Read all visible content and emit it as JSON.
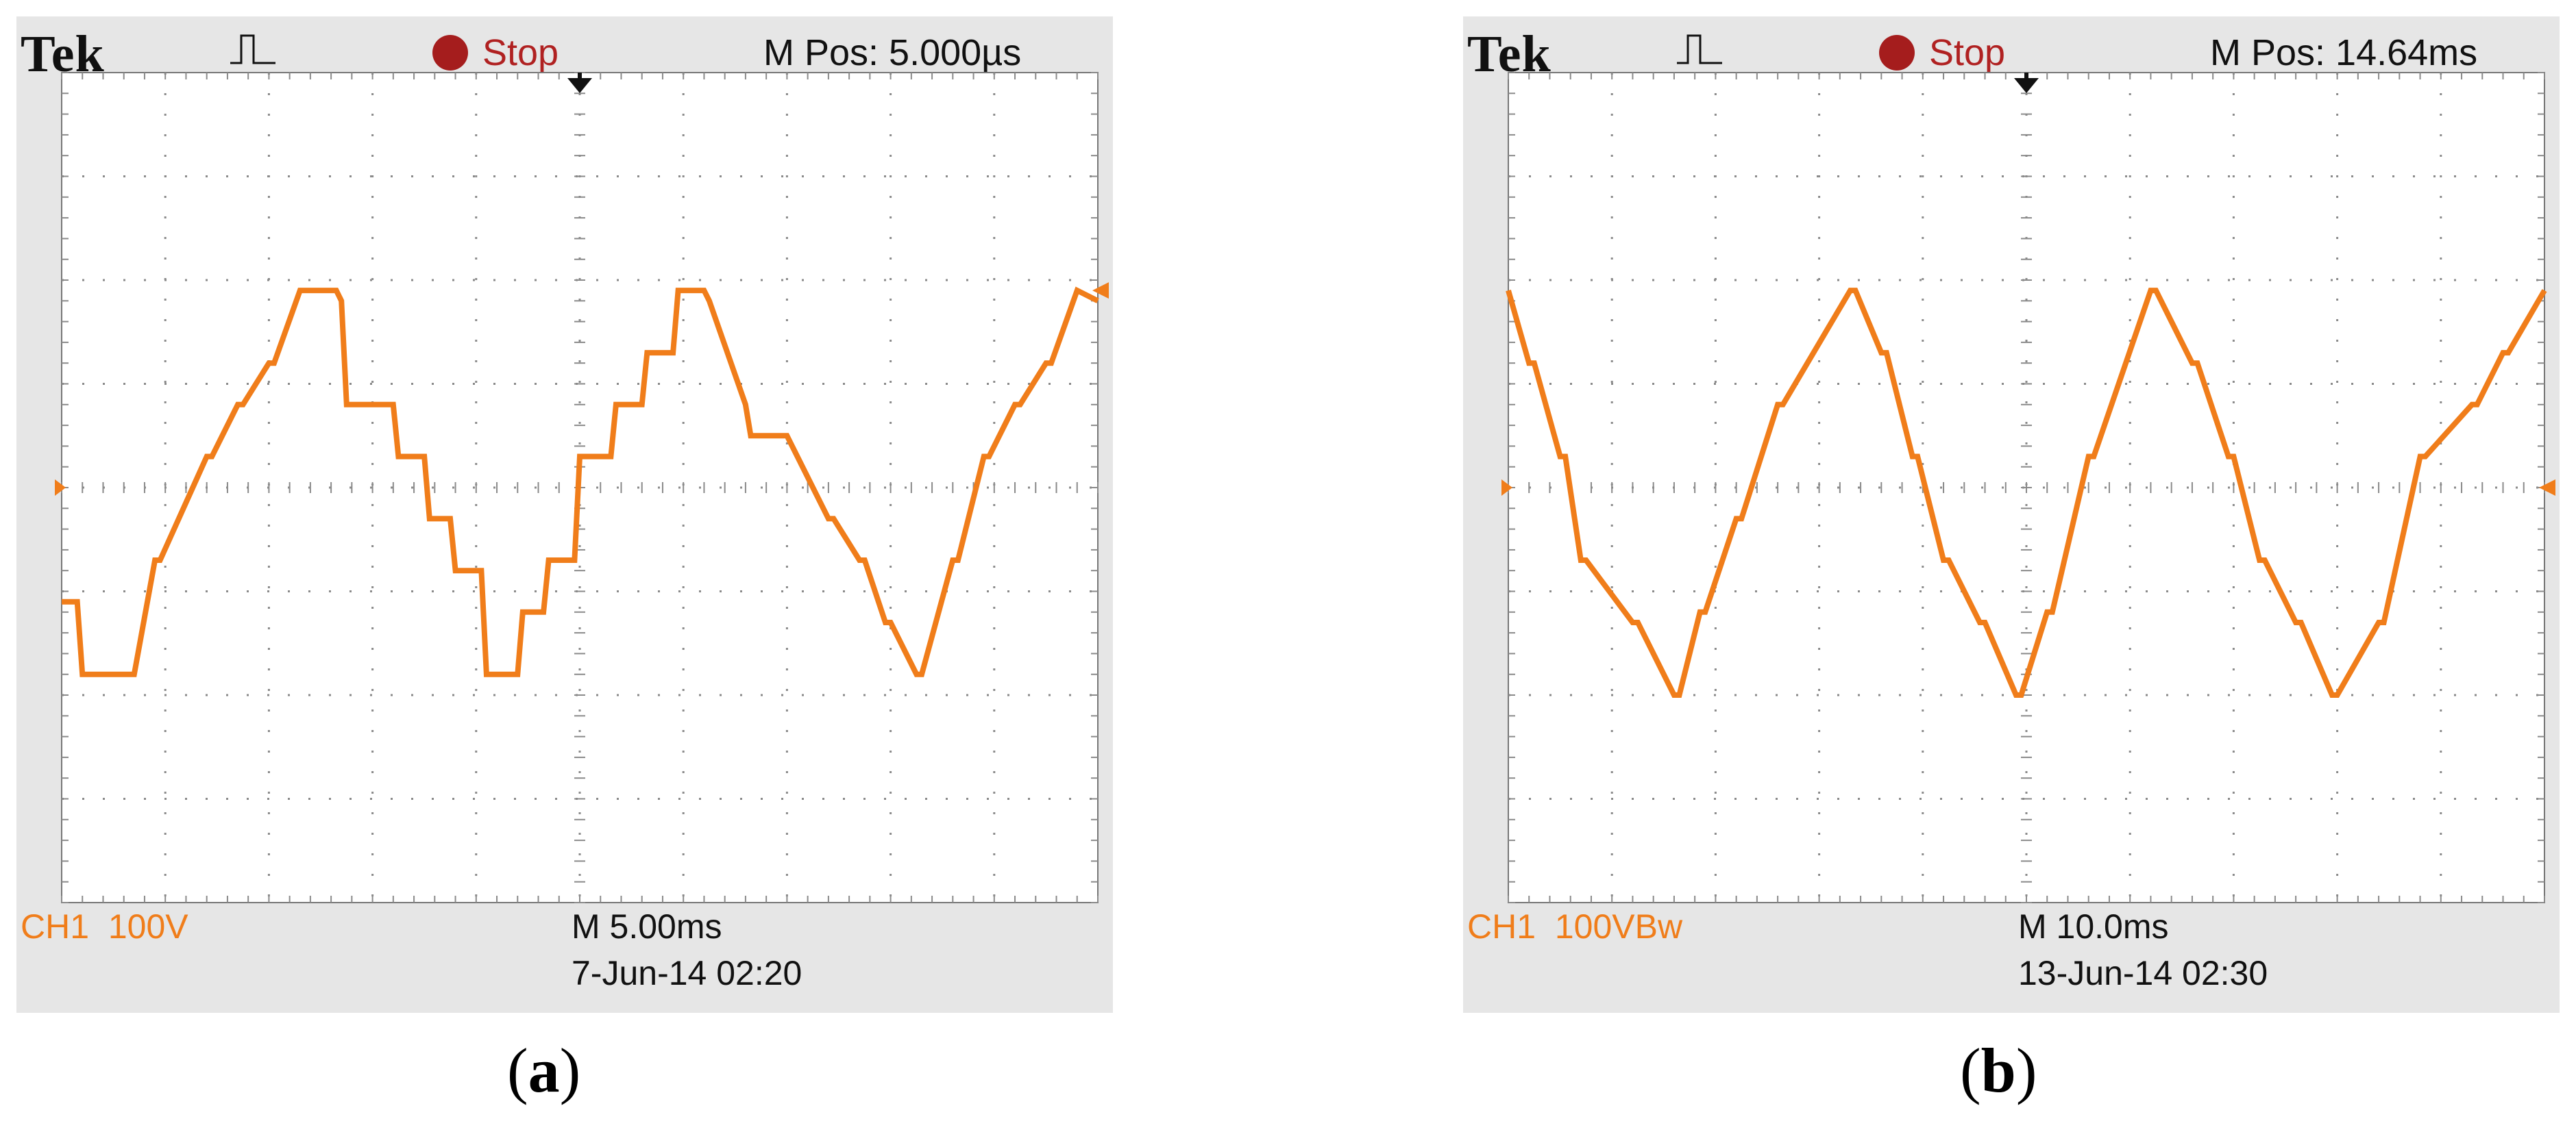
{
  "colors": {
    "trace": "#f07d1a",
    "stop": "#a51d1d",
    "grid": "#8a8a8a",
    "screen_bg": "#ffffff",
    "bezel": "#e6e6e6"
  },
  "chart_data": [
    {
      "type": "line",
      "panel": "a",
      "brand": "Tek",
      "trigger_icon": "pulse-trigger-icon",
      "status": "Stop",
      "m_pos": "M Pos: 5.000µs",
      "channel_label": "CH1",
      "volts_per_div": "100V",
      "timebase": "M 5.00ms",
      "datetime": "7-Jun-14 02:20",
      "caption": "a",
      "grid": true,
      "xlim": [
        0,
        10
      ],
      "ylim": [
        -4,
        4
      ],
      "x_unit": "div (5.00 ms/div)",
      "y_unit": "div (100 V/div)",
      "series": [
        {
          "x": [
            0,
            0.15,
            0.2,
            0.7,
            0.9,
            0.95,
            1.4,
            1.45,
            1.7,
            1.75,
            2.0,
            2.05,
            2.3,
            2.35,
            2.65,
            2.7,
            2.75,
            3.2,
            3.25,
            3.5,
            3.55,
            3.75,
            3.8,
            4.05,
            4.1,
            4.4,
            4.45,
            4.65,
            4.7,
            4.95,
            5.0,
            5.3,
            5.35,
            5.6,
            5.65,
            5.9,
            5.95,
            6.2,
            6.25,
            6.6,
            6.65,
            7.0,
            7.4,
            7.45,
            7.7,
            7.75,
            7.95,
            8.0,
            8.25,
            8.3,
            8.6,
            8.65,
            8.9,
            8.95,
            9.2,
            9.25,
            9.5,
            9.55,
            9.8,
            10.0
          ],
          "y": [
            -1.1,
            -1.1,
            -1.8,
            -1.8,
            -0.7,
            -0.7,
            0.3,
            0.3,
            0.8,
            0.8,
            1.2,
            1.2,
            1.9,
            1.9,
            1.9,
            1.8,
            0.8,
            0.8,
            0.3,
            0.3,
            -0.3,
            -0.3,
            -0.8,
            -0.8,
            -1.8,
            -1.8,
            -1.2,
            -1.2,
            -0.7,
            -0.7,
            0.3,
            0.3,
            0.8,
            0.8,
            1.3,
            1.3,
            1.9,
            1.9,
            1.8,
            0.8,
            0.5,
            0.5,
            -0.3,
            -0.3,
            -0.7,
            -0.7,
            -1.3,
            -1.3,
            -1.8,
            -1.8,
            -0.7,
            -0.7,
            0.3,
            0.3,
            0.8,
            0.8,
            1.2,
            1.2,
            1.9,
            1.8
          ]
        }
      ]
    },
    {
      "type": "line",
      "panel": "b",
      "brand": "Tek",
      "trigger_icon": "pulse-trigger-icon",
      "status": "Stop",
      "m_pos": "M Pos: 14.64ms",
      "channel_label": "CH1",
      "volts_per_div": "100VBw",
      "timebase": "M 10.0ms",
      "datetime": "13-Jun-14 02:30",
      "caption": "b",
      "grid": true,
      "xlim": [
        0,
        10
      ],
      "ylim": [
        -4,
        4
      ],
      "x_unit": "div (10.0 ms/div)",
      "y_unit": "div (100 V/div)",
      "series": [
        {
          "x": [
            0,
            0.2,
            0.25,
            0.5,
            0.55,
            0.7,
            0.75,
            1.2,
            1.25,
            1.6,
            1.65,
            1.85,
            1.9,
            2.2,
            2.25,
            2.6,
            2.65,
            3.3,
            3.35,
            3.6,
            3.65,
            3.9,
            3.95,
            4.2,
            4.25,
            4.55,
            4.6,
            4.9,
            4.95,
            5.2,
            5.25,
            5.6,
            5.65,
            6.2,
            6.25,
            6.6,
            6.65,
            6.95,
            7.0,
            7.25,
            7.3,
            7.6,
            7.65,
            7.95,
            8.0,
            8.4,
            8.45,
            8.8,
            8.85,
            9.3,
            9.35,
            9.6,
            9.65,
            10.0
          ],
          "y": [
            1.9,
            1.2,
            1.2,
            0.3,
            0.3,
            -0.7,
            -0.7,
            -1.3,
            -1.3,
            -2.0,
            -2.0,
            -1.2,
            -1.2,
            -0.3,
            -0.3,
            0.8,
            0.8,
            1.9,
            1.9,
            1.3,
            1.3,
            0.3,
            0.3,
            -0.7,
            -0.7,
            -1.3,
            -1.3,
            -2.0,
            -2.0,
            -1.2,
            -1.2,
            0.3,
            0.3,
            1.9,
            1.9,
            1.2,
            1.2,
            0.3,
            0.3,
            -0.7,
            -0.7,
            -1.3,
            -1.3,
            -2.0,
            -2.0,
            -1.3,
            -1.3,
            0.3,
            0.3,
            0.8,
            0.8,
            1.3,
            1.3,
            1.9
          ]
        }
      ]
    }
  ]
}
